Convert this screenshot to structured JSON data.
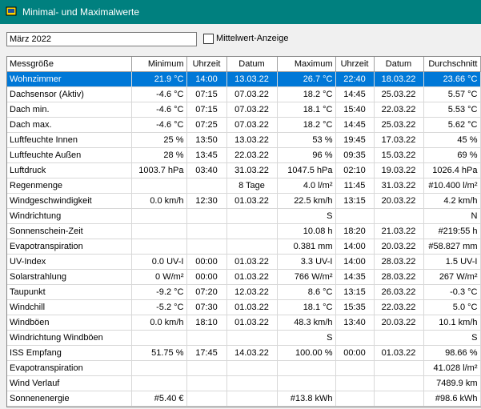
{
  "window": {
    "title": "Minimal- und Maximalwerte"
  },
  "toolbar": {
    "period": "März 2022",
    "checkbox_label": "Mittelwert-Anzeige"
  },
  "table": {
    "columns": [
      "Messgröße",
      "Minimum",
      "Uhrzeit",
      "Datum",
      "Maximum",
      "Uhrzeit",
      "Datum",
      "Durchschnitt"
    ],
    "rows": [
      [
        "Wohnzimmer",
        "21.9 °C",
        "14:00",
        "13.03.22",
        "26.7 °C",
        "22:40",
        "18.03.22",
        "23.66 °C"
      ],
      [
        "Dachsensor (Aktiv)",
        "-4.6 °C",
        "07:15",
        "07.03.22",
        "18.2 °C",
        "14:45",
        "25.03.22",
        "5.57 °C"
      ],
      [
        "Dach min.",
        "-4.6 °C",
        "07:15",
        "07.03.22",
        "18.1 °C",
        "15:40",
        "22.03.22",
        "5.53 °C"
      ],
      [
        "Dach max.",
        "-4.6 °C",
        "07:25",
        "07.03.22",
        "18.2 °C",
        "14:45",
        "25.03.22",
        "5.62 °C"
      ],
      [
        "Luftfeuchte Innen",
        "25 %",
        "13:50",
        "13.03.22",
        "53 %",
        "19:45",
        "17.03.22",
        "45 %"
      ],
      [
        "Luftfeuchte Außen",
        "28 %",
        "13:45",
        "22.03.22",
        "96 %",
        "09:35",
        "15.03.22",
        "69 %"
      ],
      [
        "Luftdruck",
        "1003.7 hPa",
        "03:40",
        "31.03.22",
        "1047.5 hPa",
        "02:10",
        "19.03.22",
        "1026.4 hPa"
      ],
      [
        "Regenmenge",
        null,
        null,
        "8 Tage",
        "4.0 l/m²",
        "11:45",
        "31.03.22",
        "#10.400 l/m²"
      ],
      [
        "Windgeschwindigkeit",
        "0.0 km/h",
        "12:30",
        "01.03.22",
        "22.5 km/h",
        "13:15",
        "20.03.22",
        "4.2 km/h"
      ],
      [
        "Windrichtung",
        null,
        null,
        null,
        "S",
        null,
        null,
        "N"
      ],
      [
        "Sonnenschein-Zeit",
        null,
        null,
        null,
        "10.08 h",
        "18:20",
        "21.03.22",
        "#219:55 h"
      ],
      [
        "Evapotranspiration",
        null,
        null,
        null,
        "0.381 mm",
        "14:00",
        "20.03.22",
        "#58.827 mm"
      ],
      [
        "UV-Index",
        "0.0 UV-I",
        "00:00",
        "01.03.22",
        "3.3 UV-I",
        "14:00",
        "28.03.22",
        "1.5 UV-I"
      ],
      [
        "Solarstrahlung",
        "0 W/m²",
        "00:00",
        "01.03.22",
        "766 W/m²",
        "14:35",
        "28.03.22",
        "267 W/m²"
      ],
      [
        "Taupunkt",
        "-9.2 °C",
        "07:20",
        "12.03.22",
        "8.6 °C",
        "13:15",
        "26.03.22",
        "-0.3 °C"
      ],
      [
        "Windchill",
        "-5.2 °C",
        "07:30",
        "01.03.22",
        "18.1 °C",
        "15:35",
        "22.03.22",
        "5.0 °C"
      ],
      [
        "Windböen",
        "0.0 km/h",
        "18:10",
        "01.03.22",
        "48.3 km/h",
        "13:40",
        "20.03.22",
        "10.1 km/h"
      ],
      [
        "Windrichtung Windböen",
        null,
        null,
        null,
        "S",
        null,
        null,
        "S"
      ],
      [
        "ISS Empfang",
        "51.75 %",
        "17:45",
        "14.03.22",
        "100.00 %",
        "00:00",
        "01.03.22",
        "98.66 %"
      ],
      [
        "Evapotranspiration",
        null,
        null,
        null,
        null,
        null,
        null,
        "41.028 l/m²"
      ],
      [
        "Wind Verlauf",
        null,
        null,
        null,
        null,
        null,
        null,
        "7489.9 km"
      ],
      [
        "Sonnenenergie",
        "#5.40 €",
        null,
        null,
        "#13.8 kWh",
        null,
        null,
        "#98.6 kWh"
      ]
    ]
  }
}
